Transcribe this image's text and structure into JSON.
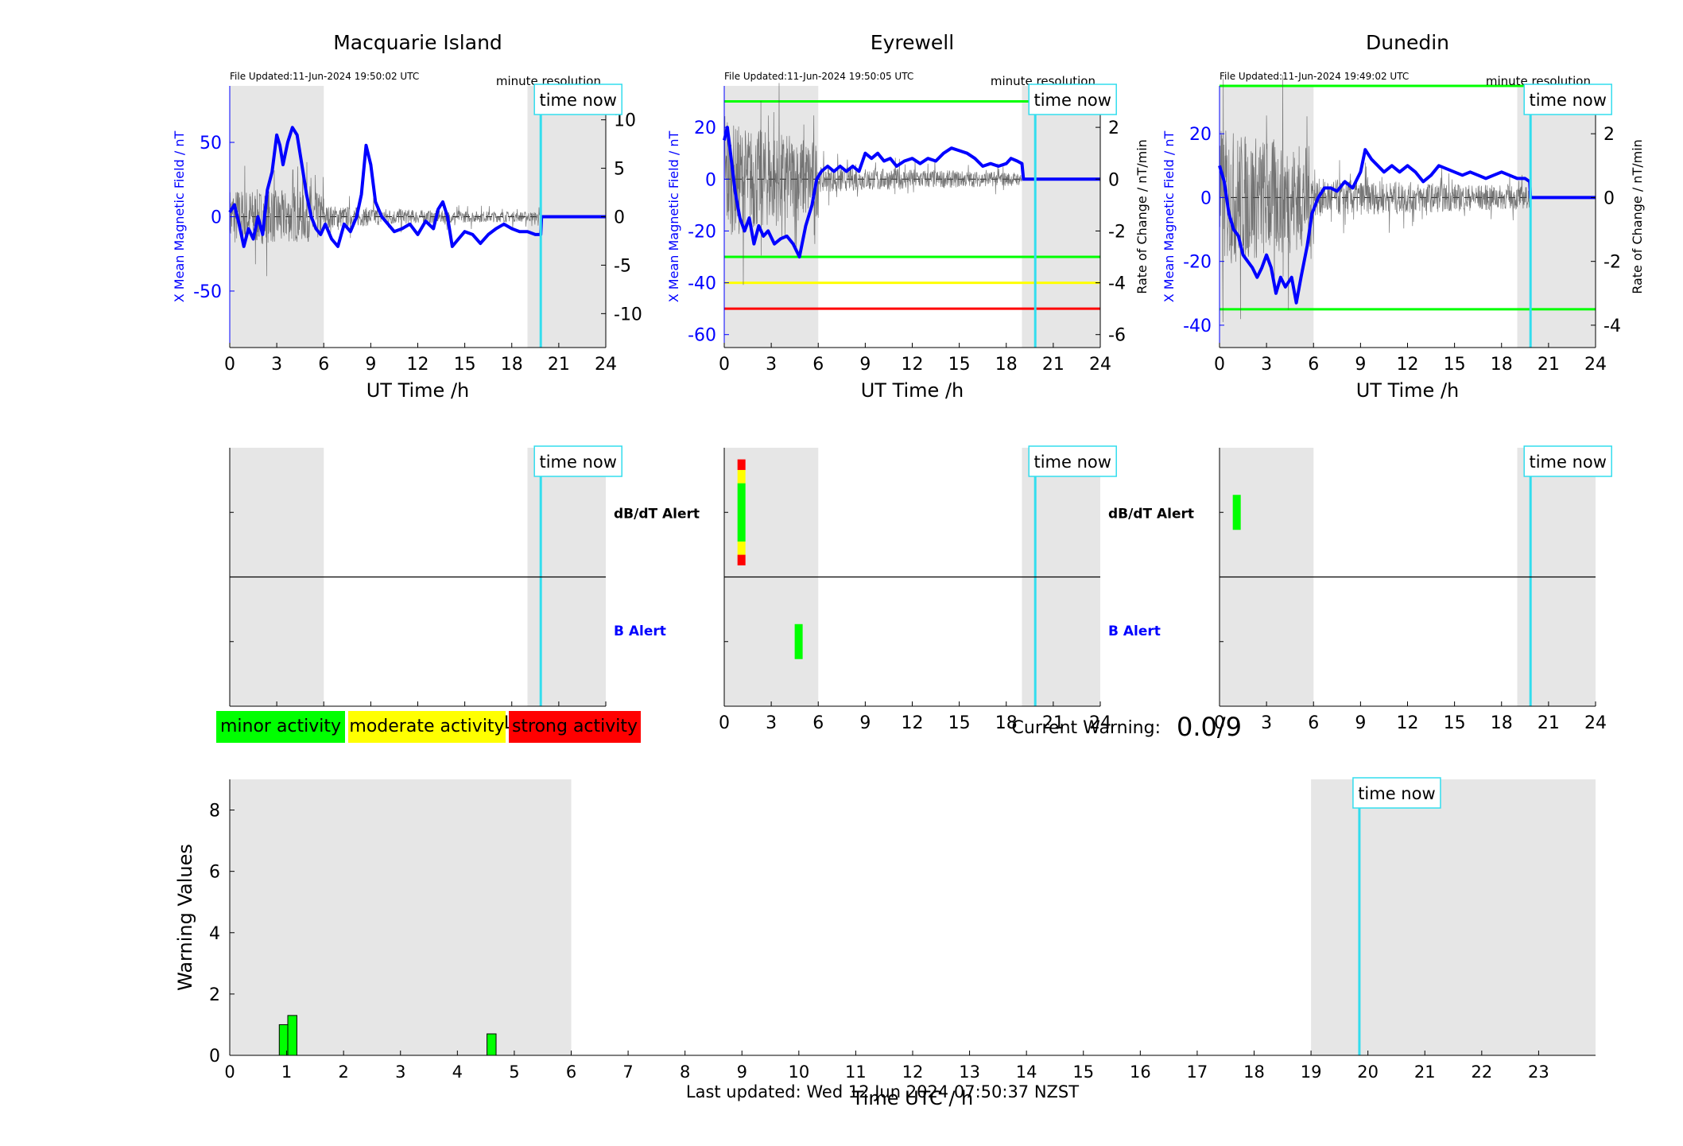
{
  "page": {
    "current_warning_label": "Current Warning:",
    "current_warning_value": "0.0/9",
    "last_updated": "Last updated: Wed 12 Jun 2024 07:50:37 NZST",
    "legend": [
      {
        "label": "minor activity",
        "color": "#00ff00"
      },
      {
        "label": "moderate activity",
        "color": "#ffff00"
      },
      {
        "label": "strong activity",
        "color": "#ff0000"
      }
    ],
    "colors": {
      "field": "#0000ff",
      "rate": "#000000",
      "night_shade": "#e6e6e6",
      "time_now": "#33ddee",
      "minor": "#00ff00",
      "moderate": "#ffff00",
      "strong": "#ff0000"
    }
  },
  "chart_data": [
    {
      "type": "line",
      "title": "Macquarie Island",
      "file_updated": "File Updated:11-Jun-2024 19:50:02 UTC",
      "resolution_label": "minute resolution",
      "time_now_label": "time now",
      "xlabel": "UT Time /h",
      "ylabel": "X Mean Magnetic Field / nT",
      "y2label": "",
      "xlim": [
        0,
        24
      ],
      "ylim": [
        -88,
        88
      ],
      "y2lim": [
        -13.5,
        13.5
      ],
      "xticks": [
        0,
        3,
        6,
        9,
        12,
        15,
        18,
        21,
        24
      ],
      "yticks": [
        -50,
        0,
        50
      ],
      "y2ticks": [
        -10,
        -5,
        0,
        5,
        10
      ],
      "night_bands": [
        [
          0,
          6
        ],
        [
          19,
          24
        ]
      ],
      "time_now": 19.85,
      "threshold_lines": [],
      "series": [
        {
          "name": "X Mean Magnetic Field",
          "axis": "left",
          "points": [
            [
              0,
              3
            ],
            [
              0.3,
              8
            ],
            [
              0.6,
              -5
            ],
            [
              0.9,
              -20
            ],
            [
              1.2,
              -8
            ],
            [
              1.5,
              -15
            ],
            [
              1.8,
              0
            ],
            [
              2.1,
              -12
            ],
            [
              2.4,
              18
            ],
            [
              2.7,
              30
            ],
            [
              3.0,
              55
            ],
            [
              3.2,
              48
            ],
            [
              3.4,
              35
            ],
            [
              3.7,
              50
            ],
            [
              4.0,
              60
            ],
            [
              4.3,
              55
            ],
            [
              4.6,
              35
            ],
            [
              4.9,
              15
            ],
            [
              5.2,
              0
            ],
            [
              5.5,
              -8
            ],
            [
              5.8,
              -12
            ],
            [
              6.1,
              -5
            ],
            [
              6.5,
              -15
            ],
            [
              6.9,
              -20
            ],
            [
              7.3,
              -5
            ],
            [
              7.7,
              -10
            ],
            [
              8.1,
              0
            ],
            [
              8.4,
              15
            ],
            [
              8.7,
              48
            ],
            [
              9.0,
              35
            ],
            [
              9.3,
              10
            ],
            [
              9.7,
              0
            ],
            [
              10.1,
              -5
            ],
            [
              10.5,
              -10
            ],
            [
              11.0,
              -8
            ],
            [
              11.5,
              -5
            ],
            [
              12.0,
              -12
            ],
            [
              12.5,
              -3
            ],
            [
              13.0,
              -8
            ],
            [
              13.3,
              5
            ],
            [
              13.6,
              10
            ],
            [
              13.9,
              0
            ],
            [
              14.2,
              -20
            ],
            [
              14.6,
              -15
            ],
            [
              15.0,
              -10
            ],
            [
              15.5,
              -12
            ],
            [
              16.0,
              -18
            ],
            [
              16.5,
              -12
            ],
            [
              17.0,
              -8
            ],
            [
              17.5,
              -5
            ],
            [
              18.0,
              -8
            ],
            [
              18.5,
              -10
            ],
            [
              19.0,
              -10
            ],
            [
              19.5,
              -12
            ],
            [
              19.85,
              -12
            ],
            [
              19.9,
              0
            ],
            [
              24,
              0
            ]
          ]
        },
        {
          "name": "Rate of Change",
          "axis": "right",
          "style": "noise",
          "amplitude": [
            [
              0,
              3
            ],
            [
              6,
              2.5
            ],
            [
              6.01,
              1.2
            ],
            [
              12,
              0.7
            ],
            [
              15,
              0.6
            ],
            [
              19.85,
              0.5
            ]
          ]
        }
      ]
    },
    {
      "type": "line",
      "title": "Eyrewell",
      "file_updated": "File Updated:11-Jun-2024 19:50:05 UTC",
      "resolution_label": "minute resolution",
      "time_now_label": "time now",
      "xlabel": "UT Time /h",
      "ylabel": "X Mean Magnetic Field / nT",
      "y2label": "Rate of Change / nT/min",
      "xlim": [
        0,
        24
      ],
      "ylim": [
        -65,
        36
      ],
      "y2lim": [
        -6.5,
        3.6
      ],
      "xticks": [
        0,
        3,
        6,
        9,
        12,
        15,
        18,
        21,
        24
      ],
      "yticks": [
        -60,
        -40,
        -20,
        0,
        20
      ],
      "y2ticks": [
        -6,
        -4,
        -2,
        0,
        2
      ],
      "night_bands": [
        [
          0,
          6
        ],
        [
          19,
          24
        ]
      ],
      "time_now": 19.85,
      "threshold_lines": [
        {
          "y2": 3,
          "color": "#00ff00"
        },
        {
          "y2": -3,
          "color": "#00ff00"
        },
        {
          "y2": -4,
          "color": "#ffff00"
        },
        {
          "y2": -5,
          "color": "#ff0000"
        }
      ],
      "series": [
        {
          "name": "X Mean Magnetic Field",
          "axis": "left",
          "points": [
            [
              0,
              15
            ],
            [
              0.2,
              20
            ],
            [
              0.4,
              10
            ],
            [
              0.7,
              -5
            ],
            [
              1.0,
              -15
            ],
            [
              1.3,
              -20
            ],
            [
              1.6,
              -15
            ],
            [
              1.9,
              -25
            ],
            [
              2.2,
              -18
            ],
            [
              2.5,
              -22
            ],
            [
              2.8,
              -20
            ],
            [
              3.2,
              -25
            ],
            [
              3.6,
              -23
            ],
            [
              4.0,
              -22
            ],
            [
              4.4,
              -25
            ],
            [
              4.8,
              -30
            ],
            [
              5.2,
              -18
            ],
            [
              5.6,
              -10
            ],
            [
              5.9,
              0
            ],
            [
              6.2,
              3
            ],
            [
              6.6,
              5
            ],
            [
              7.0,
              3
            ],
            [
              7.4,
              5
            ],
            [
              7.8,
              3
            ],
            [
              8.2,
              5
            ],
            [
              8.6,
              3
            ],
            [
              9.0,
              10
            ],
            [
              9.4,
              8
            ],
            [
              9.8,
              10
            ],
            [
              10.2,
              7
            ],
            [
              10.6,
              8
            ],
            [
              11.0,
              5
            ],
            [
              11.5,
              7
            ],
            [
              12.0,
              8
            ],
            [
              12.5,
              6
            ],
            [
              13.0,
              8
            ],
            [
              13.5,
              7
            ],
            [
              14.0,
              10
            ],
            [
              14.5,
              12
            ],
            [
              15.0,
              11
            ],
            [
              15.5,
              10
            ],
            [
              16.0,
              8
            ],
            [
              16.5,
              5
            ],
            [
              17.0,
              6
            ],
            [
              17.5,
              5
            ],
            [
              18.0,
              6
            ],
            [
              18.3,
              8
            ],
            [
              18.7,
              7
            ],
            [
              19.0,
              6
            ],
            [
              19.1,
              0
            ],
            [
              24,
              0
            ]
          ]
        },
        {
          "name": "Rate of Change",
          "axis": "right",
          "style": "noise",
          "amplitude": [
            [
              0,
              2.2
            ],
            [
              6,
              1.5
            ],
            [
              6.01,
              0.5
            ],
            [
              19,
              0.25
            ]
          ]
        }
      ]
    },
    {
      "type": "line",
      "title": "Dunedin",
      "file_updated": "File Updated:11-Jun-2024 19:49:02 UTC",
      "resolution_label": "minute resolution",
      "time_now_label": "time now",
      "xlabel": "UT Time /h",
      "ylabel": "X Mean Magnetic Field / nT",
      "y2label": "Rate of Change / nT/min",
      "xlim": [
        0,
        24
      ],
      "ylim": [
        -47,
        35
      ],
      "y2lim": [
        -4.7,
        3.5
      ],
      "xticks": [
        0,
        3,
        6,
        9,
        12,
        15,
        18,
        21,
        24
      ],
      "yticks": [
        -40,
        -20,
        0,
        20
      ],
      "y2ticks": [
        -4,
        -2,
        0,
        2
      ],
      "night_bands": [
        [
          0,
          6
        ],
        [
          19,
          24
        ]
      ],
      "time_now": 19.85,
      "threshold_lines": [
        {
          "y2": 3.5,
          "color": "#00ff00"
        },
        {
          "y2": -3.5,
          "color": "#00ff00"
        }
      ],
      "series": [
        {
          "name": "X Mean Magnetic Field",
          "axis": "left",
          "points": [
            [
              0,
              10
            ],
            [
              0.3,
              5
            ],
            [
              0.6,
              -5
            ],
            [
              0.9,
              -10
            ],
            [
              1.2,
              -12
            ],
            [
              1.5,
              -18
            ],
            [
              1.8,
              -20
            ],
            [
              2.1,
              -22
            ],
            [
              2.4,
              -25
            ],
            [
              2.7,
              -22
            ],
            [
              3.0,
              -18
            ],
            [
              3.3,
              -22
            ],
            [
              3.6,
              -30
            ],
            [
              3.9,
              -25
            ],
            [
              4.2,
              -28
            ],
            [
              4.6,
              -25
            ],
            [
              4.9,
              -33
            ],
            [
              5.2,
              -25
            ],
            [
              5.6,
              -15
            ],
            [
              5.9,
              -5
            ],
            [
              6.3,
              0
            ],
            [
              6.7,
              3
            ],
            [
              7.1,
              3
            ],
            [
              7.5,
              2
            ],
            [
              8.0,
              5
            ],
            [
              8.5,
              3
            ],
            [
              9.0,
              8
            ],
            [
              9.3,
              15
            ],
            [
              9.7,
              12
            ],
            [
              10.1,
              10
            ],
            [
              10.5,
              8
            ],
            [
              11.0,
              10
            ],
            [
              11.5,
              8
            ],
            [
              12.0,
              10
            ],
            [
              12.5,
              8
            ],
            [
              13.0,
              5
            ],
            [
              13.5,
              7
            ],
            [
              14.0,
              10
            ],
            [
              14.5,
              9
            ],
            [
              15.0,
              8
            ],
            [
              15.5,
              7
            ],
            [
              16.0,
              8
            ],
            [
              16.5,
              7
            ],
            [
              17.0,
              6
            ],
            [
              17.5,
              7
            ],
            [
              18.0,
              8
            ],
            [
              18.5,
              7
            ],
            [
              19.0,
              6
            ],
            [
              19.5,
              6
            ],
            [
              19.8,
              5
            ],
            [
              19.85,
              0
            ],
            [
              24,
              0
            ]
          ]
        },
        {
          "name": "Rate of Change",
          "axis": "right",
          "style": "noise",
          "amplitude": [
            [
              0,
              2.2
            ],
            [
              6,
              1.6
            ],
            [
              6.01,
              0.6
            ],
            [
              19.8,
              0.35
            ]
          ]
        }
      ]
    },
    {
      "type": "alert",
      "station": "Macquarie Island",
      "upper_label": "dB/dT Alert",
      "lower_label": "B Alert",
      "time_now_label": "time now",
      "xlim": [
        0,
        24
      ],
      "xticks": [
        0,
        3,
        6,
        9,
        12,
        15,
        18,
        21,
        24
      ],
      "night_bands": [
        [
          0,
          6
        ],
        [
          19,
          24
        ]
      ],
      "time_now": 19.85,
      "dbdt_marks": [],
      "b_marks": []
    },
    {
      "type": "alert",
      "station": "Eyrewell",
      "upper_label": "dB/dT Alert",
      "lower_label": "B Alert",
      "time_now_label": "time now",
      "xlim": [
        0,
        24
      ],
      "xticks": [
        0,
        3,
        6,
        9,
        12,
        15,
        18,
        21,
        24
      ],
      "night_bands": [
        [
          0,
          6
        ],
        [
          19,
          24
        ]
      ],
      "time_now": 19.85,
      "dbdt_marks": [
        {
          "x": 1.1,
          "segments": [
            {
              "from": -1.0,
              "to": -0.8,
              "level": "strong"
            },
            {
              "from": -0.8,
              "to": -0.55,
              "level": "moderate"
            },
            {
              "from": -0.55,
              "to": 0.55,
              "level": "minor"
            },
            {
              "from": 0.55,
              "to": 0.8,
              "level": "moderate"
            },
            {
              "from": 0.8,
              "to": 1.0,
              "level": "strong"
            }
          ]
        }
      ],
      "b_marks": [
        {
          "x": 4.75,
          "segments": [
            {
              "from": -0.33,
              "to": 0.33,
              "level": "minor"
            }
          ]
        }
      ]
    },
    {
      "type": "alert",
      "station": "Dunedin",
      "upper_label": "dB/dT Alert",
      "lower_label": "B Alert",
      "time_now_label": "time now",
      "xlim": [
        0,
        24
      ],
      "xticks": [
        0,
        3,
        6,
        9,
        12,
        15,
        18,
        21,
        24
      ],
      "night_bands": [
        [
          0,
          6
        ],
        [
          19,
          24
        ]
      ],
      "time_now": 19.85,
      "dbdt_marks": [
        {
          "x": 1.1,
          "segments": [
            {
              "from": -0.33,
              "to": 0.33,
              "level": "minor"
            }
          ]
        }
      ],
      "b_marks": []
    },
    {
      "type": "bar",
      "title": "",
      "xlabel": "Time UTC / h",
      "ylabel": "Warning Values",
      "time_now_label": "time now",
      "xlim": [
        0,
        24
      ],
      "ylim": [
        0,
        9
      ],
      "xticks": [
        0,
        1,
        2,
        3,
        4,
        5,
        6,
        7,
        8,
        9,
        10,
        11,
        12,
        13,
        14,
        15,
        16,
        17,
        18,
        19,
        20,
        21,
        22,
        23
      ],
      "yticks": [
        0,
        2,
        4,
        6,
        8
      ],
      "night_bands": [
        [
          0,
          6
        ],
        [
          19,
          24
        ]
      ],
      "time_now": 19.85,
      "bars": [
        {
          "x": 0.95,
          "value": 1.0
        },
        {
          "x": 1.1,
          "value": 1.3
        },
        {
          "x": 4.6,
          "value": 0.7
        }
      ],
      "bar_width": 0.16
    }
  ]
}
